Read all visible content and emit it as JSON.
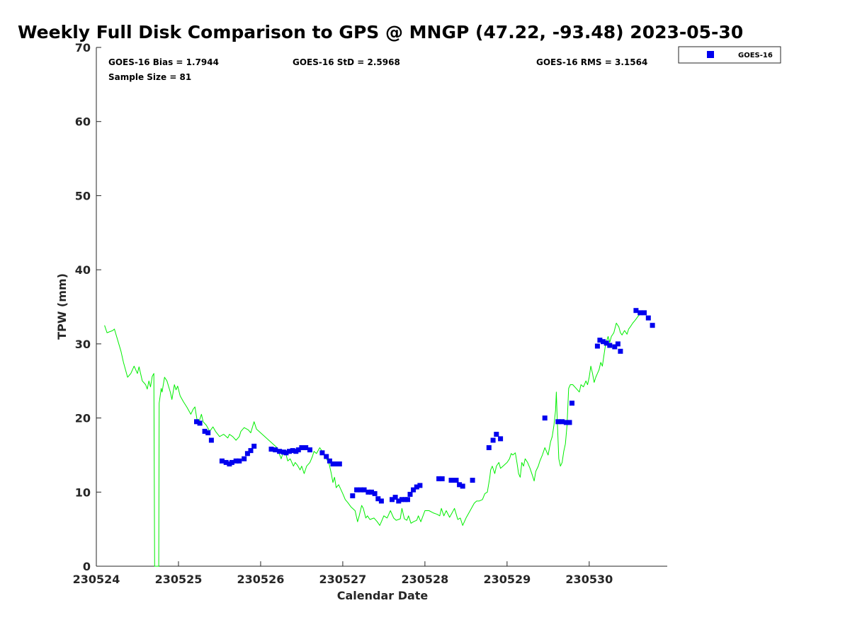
{
  "chart_data": {
    "type": "scatter",
    "title": "Weekly Full Disk Comparison to GPS @ MNGP (47.22, -93.48) 2023-05-30",
    "xlabel": "Calendar Date",
    "ylabel": "TPW (mm)",
    "xlim": [
      0,
      6.95
    ],
    "ylim": [
      0,
      70
    ],
    "x_tick_values": [
      0,
      1,
      2,
      3,
      4,
      5,
      6
    ],
    "x_tick_labels": [
      "230524",
      "230525",
      "230526",
      "230527",
      "230528",
      "230529",
      "230530"
    ],
    "y_ticks": [
      0,
      10,
      20,
      30,
      40,
      50,
      60,
      70
    ],
    "grid": false,
    "legend_position": "outside top-right",
    "stats": {
      "bias": "GOES-16 Bias = 1.7944",
      "std": "GOES-16 StD = 2.5968",
      "rms": "GOES-16 RMS = 3.1564",
      "sample": "Sample Size = 81"
    },
    "series": [
      {
        "name": "GPS",
        "kind": "line",
        "color": "#00ee00",
        "in_legend": false,
        "points": [
          [
            0.1,
            32.5
          ],
          [
            0.13,
            31.5
          ],
          [
            0.2,
            31.8
          ],
          [
            0.22,
            32
          ],
          [
            0.3,
            29
          ],
          [
            0.33,
            27.5
          ],
          [
            0.38,
            25.5
          ],
          [
            0.42,
            26
          ],
          [
            0.46,
            27
          ],
          [
            0.5,
            26
          ],
          [
            0.52,
            26.9
          ],
          [
            0.56,
            25
          ],
          [
            0.6,
            24.5
          ],
          [
            0.62,
            23.9
          ],
          [
            0.64,
            25
          ],
          [
            0.66,
            24.2
          ],
          [
            0.68,
            25.6
          ],
          [
            0.7,
            26
          ],
          [
            0.71,
            0
          ],
          [
            0.76,
            0
          ],
          [
            0.765,
            22
          ],
          [
            0.79,
            24
          ],
          [
            0.8,
            23.5
          ],
          [
            0.83,
            25.5
          ],
          [
            0.86,
            25
          ],
          [
            0.9,
            23.5
          ],
          [
            0.92,
            22.5
          ],
          [
            0.95,
            24.5
          ],
          [
            0.97,
            23.8
          ],
          [
            0.99,
            24.3
          ],
          [
            1.02,
            23
          ],
          [
            1.06,
            22.2
          ],
          [
            1.1,
            21.5
          ],
          [
            1.15,
            20.5
          ],
          [
            1.18,
            21.2
          ],
          [
            1.2,
            21.5
          ],
          [
            1.23,
            19.5
          ],
          [
            1.25,
            19.5
          ],
          [
            1.28,
            20.5
          ],
          [
            1.3,
            19.5
          ],
          [
            1.34,
            19
          ],
          [
            1.38,
            18.2
          ],
          [
            1.42,
            18.8
          ],
          [
            1.45,
            18.2
          ],
          [
            1.5,
            17.5
          ],
          [
            1.55,
            17.8
          ],
          [
            1.6,
            17.3
          ],
          [
            1.62,
            17.8
          ],
          [
            1.66,
            17.5
          ],
          [
            1.7,
            17
          ],
          [
            1.74,
            17.5
          ],
          [
            1.76,
            18.2
          ],
          [
            1.8,
            18.7
          ],
          [
            1.85,
            18.4
          ],
          [
            1.88,
            18
          ],
          [
            1.92,
            19.5
          ],
          [
            1.95,
            18.5
          ],
          [
            2,
            18
          ],
          [
            2.05,
            17.5
          ],
          [
            2.1,
            17
          ],
          [
            2.15,
            16.5
          ],
          [
            2.2,
            16
          ],
          [
            2.25,
            14.5
          ],
          [
            2.27,
            15.2
          ],
          [
            2.3,
            15.5
          ],
          [
            2.33,
            14.2
          ],
          [
            2.36,
            14.5
          ],
          [
            2.4,
            13.5
          ],
          [
            2.42,
            14
          ],
          [
            2.45,
            13.6
          ],
          [
            2.48,
            13
          ],
          [
            2.5,
            13.5
          ],
          [
            2.53,
            12.5
          ],
          [
            2.56,
            13.5
          ],
          [
            2.6,
            14
          ],
          [
            2.63,
            14.8
          ],
          [
            2.65,
            15.5
          ],
          [
            2.68,
            15.2
          ],
          [
            2.72,
            16
          ],
          [
            2.75,
            15.5
          ],
          [
            2.78,
            14.8
          ],
          [
            2.8,
            14.5
          ],
          [
            2.83,
            14
          ],
          [
            2.86,
            12.5
          ],
          [
            2.88,
            11.3
          ],
          [
            2.9,
            12
          ],
          [
            2.92,
            10.6
          ],
          [
            2.95,
            11
          ],
          [
            3,
            9.8
          ],
          [
            3.03,
            9
          ],
          [
            3.06,
            8.6
          ],
          [
            3.1,
            8
          ],
          [
            3.15,
            7.5
          ],
          [
            3.18,
            6
          ],
          [
            3.2,
            6.8
          ],
          [
            3.23,
            8.2
          ],
          [
            3.25,
            7.8
          ],
          [
            3.28,
            6.5
          ],
          [
            3.3,
            6.8
          ],
          [
            3.33,
            6.3
          ],
          [
            3.38,
            6.5
          ],
          [
            3.42,
            6
          ],
          [
            3.45,
            5.5
          ],
          [
            3.47,
            6
          ],
          [
            3.5,
            6.8
          ],
          [
            3.54,
            6.5
          ],
          [
            3.58,
            7.5
          ],
          [
            3.62,
            6.5
          ],
          [
            3.65,
            6.2
          ],
          [
            3.7,
            6.4
          ],
          [
            3.72,
            7.8
          ],
          [
            3.75,
            6.4
          ],
          [
            3.78,
            6.2
          ],
          [
            3.8,
            6.8
          ],
          [
            3.83,
            5.8
          ],
          [
            3.86,
            6
          ],
          [
            3.9,
            6.2
          ],
          [
            3.92,
            6.8
          ],
          [
            3.95,
            6
          ],
          [
            4,
            7.5
          ],
          [
            4.05,
            7.5
          ],
          [
            4.1,
            7.2
          ],
          [
            4.15,
            7
          ],
          [
            4.18,
            6.8
          ],
          [
            4.2,
            7.8
          ],
          [
            4.23,
            6.8
          ],
          [
            4.26,
            7.5
          ],
          [
            4.3,
            6.6
          ],
          [
            4.33,
            7.2
          ],
          [
            4.36,
            7.8
          ],
          [
            4.4,
            6.3
          ],
          [
            4.43,
            6.5
          ],
          [
            4.46,
            5.5
          ],
          [
            4.5,
            6.5
          ],
          [
            4.55,
            7.5
          ],
          [
            4.6,
            8.5
          ],
          [
            4.63,
            8.8
          ],
          [
            4.66,
            8.8
          ],
          [
            4.7,
            9
          ],
          [
            4.73,
            9.8
          ],
          [
            4.76,
            10
          ],
          [
            4.79,
            12
          ],
          [
            4.8,
            13
          ],
          [
            4.82,
            13.5
          ],
          [
            4.85,
            12.5
          ],
          [
            4.87,
            13.5
          ],
          [
            4.9,
            14
          ],
          [
            4.92,
            13.2
          ],
          [
            4.95,
            13.5
          ],
          [
            5,
            14
          ],
          [
            5.03,
            14.5
          ],
          [
            5.05,
            15.2
          ],
          [
            5.07,
            15
          ],
          [
            5.1,
            15.3
          ],
          [
            5.12,
            14
          ],
          [
            5.14,
            12.5
          ],
          [
            5.16,
            12
          ],
          [
            5.18,
            14
          ],
          [
            5.2,
            13.5
          ],
          [
            5.22,
            14.5
          ],
          [
            5.25,
            14
          ],
          [
            5.28,
            13.2
          ],
          [
            5.31,
            12.2
          ],
          [
            5.33,
            11.5
          ],
          [
            5.35,
            12.8
          ],
          [
            5.38,
            13.5
          ],
          [
            5.4,
            14.2
          ],
          [
            5.43,
            15
          ],
          [
            5.46,
            16
          ],
          [
            5.48,
            15.5
          ],
          [
            5.5,
            15
          ],
          [
            5.53,
            16.8
          ],
          [
            5.55,
            17.5
          ],
          [
            5.57,
            19
          ],
          [
            5.59,
            21
          ],
          [
            5.6,
            23.5
          ],
          [
            5.61,
            20
          ],
          [
            5.63,
            14.5
          ],
          [
            5.65,
            13.5
          ],
          [
            5.67,
            14
          ],
          [
            5.69,
            15.5
          ],
          [
            5.71,
            16.5
          ],
          [
            5.73,
            19
          ],
          [
            5.75,
            24
          ],
          [
            5.77,
            24.5
          ],
          [
            5.8,
            24.5
          ],
          [
            5.84,
            24
          ],
          [
            5.88,
            23.5
          ],
          [
            5.9,
            24.5
          ],
          [
            5.93,
            24.2
          ],
          [
            5.96,
            25
          ],
          [
            5.98,
            24.5
          ],
          [
            6,
            25.5
          ],
          [
            6.02,
            27
          ],
          [
            6.04,
            26
          ],
          [
            6.06,
            24.8
          ],
          [
            6.08,
            25.5
          ],
          [
            6.1,
            26
          ],
          [
            6.12,
            26.5
          ],
          [
            6.14,
            27.5
          ],
          [
            6.16,
            27
          ],
          [
            6.18,
            28.5
          ],
          [
            6.2,
            30
          ],
          [
            6.23,
            31
          ],
          [
            6.25,
            30.2
          ],
          [
            6.27,
            31
          ],
          [
            6.3,
            31.5
          ],
          [
            6.33,
            32.8
          ],
          [
            6.36,
            32.3
          ],
          [
            6.38,
            31.5
          ],
          [
            6.4,
            31.2
          ],
          [
            6.43,
            31.8
          ],
          [
            6.46,
            31.3
          ],
          [
            6.48,
            32
          ],
          [
            6.5,
            32.3
          ],
          [
            6.53,
            32.8
          ],
          [
            6.56,
            33.2
          ],
          [
            6.6,
            33.8
          ],
          [
            6.62,
            34
          ]
        ]
      },
      {
        "name": "GOES-16",
        "kind": "marker",
        "color": "#0000ee",
        "in_legend": true,
        "points": [
          [
            1.22,
            19.5
          ],
          [
            1.26,
            19.3
          ],
          [
            1.32,
            18.2
          ],
          [
            1.36,
            18
          ],
          [
            1.4,
            17
          ],
          [
            1.53,
            14.2
          ],
          [
            1.58,
            14
          ],
          [
            1.62,
            13.8
          ],
          [
            1.65,
            14
          ],
          [
            1.7,
            14.2
          ],
          [
            1.74,
            14.2
          ],
          [
            1.8,
            14.5
          ],
          [
            1.84,
            15.2
          ],
          [
            1.88,
            15.6
          ],
          [
            1.92,
            16.2
          ],
          [
            2.13,
            15.8
          ],
          [
            2.18,
            15.7
          ],
          [
            2.23,
            15.5
          ],
          [
            2.28,
            15.4
          ],
          [
            2.31,
            15.3
          ],
          [
            2.35,
            15.5
          ],
          [
            2.39,
            15.6
          ],
          [
            2.43,
            15.5
          ],
          [
            2.46,
            15.7
          ],
          [
            2.5,
            16
          ],
          [
            2.55,
            16
          ],
          [
            2.6,
            15.7
          ],
          [
            2.75,
            15.3
          ],
          [
            2.8,
            14.8
          ],
          [
            2.84,
            14.2
          ],
          [
            2.88,
            13.8
          ],
          [
            2.92,
            13.8
          ],
          [
            2.96,
            13.8
          ],
          [
            3.12,
            9.5
          ],
          [
            3.17,
            10.3
          ],
          [
            3.22,
            10.3
          ],
          [
            3.26,
            10.3
          ],
          [
            3.31,
            10
          ],
          [
            3.35,
            10
          ],
          [
            3.39,
            9.8
          ],
          [
            3.43,
            9.1
          ],
          [
            3.47,
            8.8
          ],
          [
            3.6,
            9
          ],
          [
            3.64,
            9.3
          ],
          [
            3.68,
            8.8
          ],
          [
            3.72,
            9
          ],
          [
            3.76,
            9
          ],
          [
            3.79,
            9
          ],
          [
            3.82,
            9.7
          ],
          [
            3.86,
            10.3
          ],
          [
            3.9,
            10.7
          ],
          [
            3.94,
            10.9
          ],
          [
            4.17,
            11.8
          ],
          [
            4.21,
            11.8
          ],
          [
            4.32,
            11.6
          ],
          [
            4.38,
            11.6
          ],
          [
            4.42,
            11
          ],
          [
            4.46,
            10.8
          ],
          [
            4.58,
            11.6
          ],
          [
            4.78,
            16
          ],
          [
            4.83,
            17
          ],
          [
            4.87,
            17.8
          ],
          [
            4.92,
            17.2
          ],
          [
            5.46,
            20
          ],
          [
            5.62,
            19.5
          ],
          [
            5.67,
            19.5
          ],
          [
            5.72,
            19.4
          ],
          [
            5.76,
            19.4
          ],
          [
            5.79,
            22
          ],
          [
            6.1,
            29.7
          ],
          [
            6.13,
            30.5
          ],
          [
            6.17,
            30.3
          ],
          [
            6.21,
            30.1
          ],
          [
            6.25,
            29.8
          ],
          [
            6.31,
            29.6
          ],
          [
            6.35,
            30
          ],
          [
            6.38,
            29
          ],
          [
            6.57,
            34.5
          ],
          [
            6.62,
            34.2
          ],
          [
            6.67,
            34.2
          ],
          [
            6.72,
            33.5
          ],
          [
            6.77,
            32.5
          ]
        ]
      }
    ]
  }
}
